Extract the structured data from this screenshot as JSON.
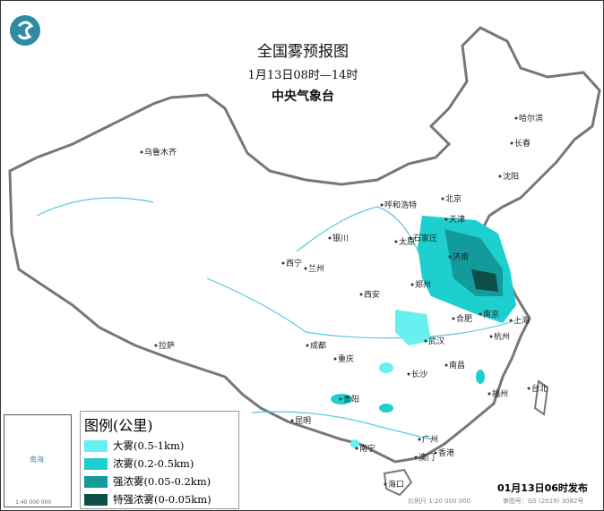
{
  "header": {
    "title": "全国雾预报图",
    "time_range": "1月13日08时—14时",
    "agency": "中央气象台",
    "logo_icon": "cma-logo"
  },
  "legend": {
    "title": "图例(公里)",
    "items": [
      {
        "label": "大雾(0.5-1km)",
        "color": "#66f0f0"
      },
      {
        "label": "浓雾(0.2-0.5km)",
        "color": "#1ecfcf"
      },
      {
        "label": "强浓雾(0.05-0.2km)",
        "color": "#139a9a"
      },
      {
        "label": "特强浓雾(0-0.05km)",
        "color": "#0b4f48"
      }
    ]
  },
  "cities": [
    "乌鲁木齐",
    "哈尔滨",
    "长春",
    "沈阳",
    "北京",
    "天津",
    "呼和浩特",
    "石家庄",
    "太原",
    "济南",
    "银川",
    "西宁",
    "兰州",
    "郑州",
    "西安",
    "合肥",
    "南京",
    "上海",
    "杭州",
    "武汉",
    "成都",
    "重庆",
    "南昌",
    "长沙",
    "拉萨",
    "贵阳",
    "福州",
    "台北",
    "昆明",
    "南宁",
    "广州",
    "香港",
    "澳门",
    "海口"
  ],
  "inset": {
    "label": "南海",
    "scale": "1:40 000 000"
  },
  "footer": {
    "issued": "01月13日06时发布",
    "scale": "比例尺 1:20 000 000",
    "review_no": "审图号：GS (2019) 3082号"
  }
}
